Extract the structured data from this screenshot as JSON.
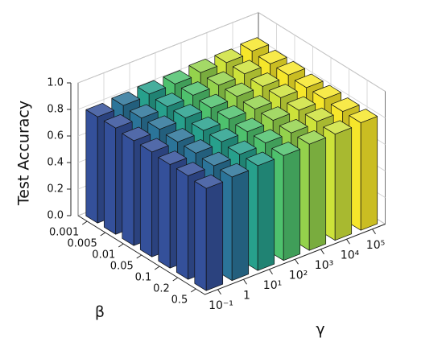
{
  "chart_data": {
    "type": "bar3d",
    "zlabel": "Test Accuracy",
    "xlabel": "β",
    "ylabel": "γ",
    "categories": [
      "0.001",
      "0.005",
      "0.01",
      "0.05",
      "0.1",
      "0.2",
      "0.5"
    ],
    "series": [
      {
        "name": "10⁻¹",
        "color": "#34509a",
        "values": [
          0.8,
          0.8,
          0.79,
          0.79,
          0.78,
          0.78,
          0.77
        ]
      },
      {
        "name": "1",
        "color": "#2b7499",
        "values": [
          0.81,
          0.8,
          0.8,
          0.79,
          0.79,
          0.78,
          0.78
        ]
      },
      {
        "name": "10¹",
        "color": "#27a08c",
        "values": [
          0.82,
          0.81,
          0.81,
          0.8,
          0.8,
          0.79,
          0.79
        ]
      },
      {
        "name": "10²",
        "color": "#4ec16d",
        "values": [
          0.82,
          0.82,
          0.81,
          0.81,
          0.8,
          0.8,
          0.79
        ]
      },
      {
        "name": "10³",
        "color": "#94d24c",
        "values": [
          0.83,
          0.82,
          0.82,
          0.81,
          0.81,
          0.8,
          0.8
        ]
      },
      {
        "name": "10⁴",
        "color": "#cde23a",
        "values": [
          0.83,
          0.83,
          0.82,
          0.82,
          0.81,
          0.81,
          0.8
        ]
      },
      {
        "name": "10⁵",
        "color": "#f6e62a",
        "values": [
          0.84,
          0.83,
          0.83,
          0.82,
          0.82,
          0.81,
          0.81
        ]
      }
    ],
    "zlim": [
      0,
      1
    ],
    "zticks": [
      {
        "value": 0,
        "label": "0.0"
      },
      {
        "value": 0.2,
        "label": "0.2"
      },
      {
        "value": 0.4,
        "label": "0.4"
      },
      {
        "value": 0.6,
        "label": "0.6"
      },
      {
        "value": 0.8,
        "label": "0.8"
      },
      {
        "value": 1,
        "label": "1.0"
      }
    ],
    "grid": true
  }
}
